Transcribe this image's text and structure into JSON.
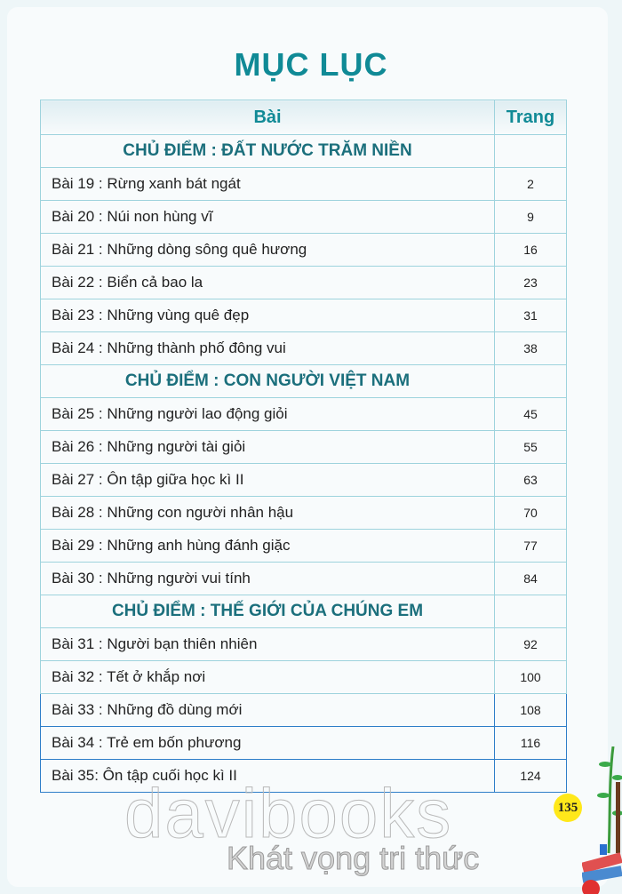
{
  "title": "MỤC LỤC",
  "header": {
    "lesson": "Bài",
    "page": "Trang"
  },
  "rows": [
    {
      "type": "section",
      "label": "CHỦ ĐIỂM : ĐẤT NƯỚC TRĂM NIỀN"
    },
    {
      "label": "Bài 19 : Rừng xanh bát ngát",
      "page": "2"
    },
    {
      "label": "Bài 20 : Núi non hùng vĩ",
      "page": "9"
    },
    {
      "label": "Bài 21 : Những dòng sông quê hương",
      "page": "16"
    },
    {
      "label": "Bài 22 : Biển cả bao la",
      "page": "23"
    },
    {
      "label": "Bài 23 : Những vùng quê đẹp",
      "page": "31"
    },
    {
      "label": "Bài 24 : Những thành phố đông vui",
      "page": "38"
    },
    {
      "type": "section",
      "label": "CHỦ ĐIỂM : CON NGƯỜI VIỆT NAM"
    },
    {
      "label": "Bài 25 : Những người lao động giỏi",
      "page": "45"
    },
    {
      "label": "Bài 26 : Những người tài giỏi",
      "page": "55"
    },
    {
      "label": "Bài 27 : Ôn tập giữa học kì II",
      "page": "63"
    },
    {
      "label": "Bài 28 : Những con người nhân hậu",
      "page": "70"
    },
    {
      "label": "Bài 29 : Những anh hùng đánh giặc",
      "page": "77"
    },
    {
      "label": "Bài 30 : Những người vui tính",
      "page": "84"
    },
    {
      "type": "section",
      "label": "CHỦ ĐIỂM : THẾ GIỚI CỦA CHÚNG EM"
    },
    {
      "label": "Bài 31 : Người bạn thiên nhiên",
      "page": "92"
    },
    {
      "label": "Bài 32 : Tết ở khắp nơi",
      "page": "100"
    },
    {
      "label": "Bài 33 : Những đồ dùng mới",
      "page": "108",
      "strong": true
    },
    {
      "label": "Bài 34 : Trẻ em bốn phương",
      "page": "116",
      "strong": true
    },
    {
      "label": "Bài 35: Ôn tập cuối học kì II",
      "page": "124",
      "strong": true
    }
  ],
  "watermark": {
    "brand": "davibooks",
    "tagline": "Khát vọng tri thức"
  },
  "page_number": "135"
}
